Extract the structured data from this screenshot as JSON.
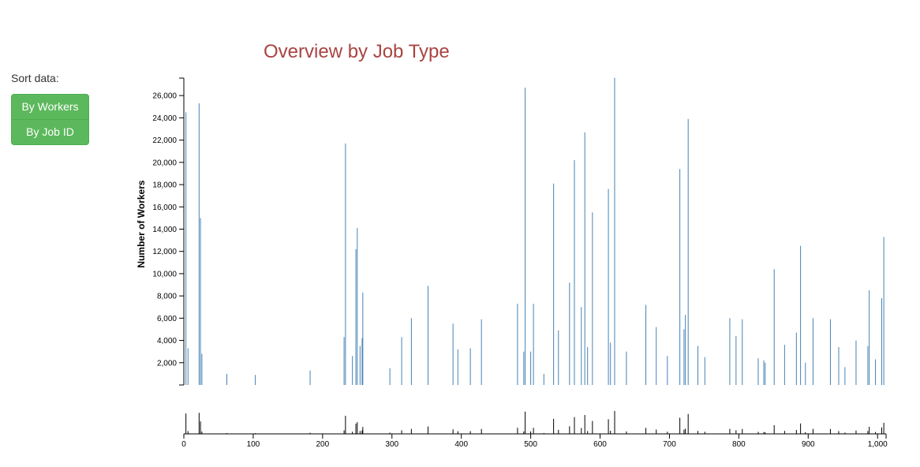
{
  "sidebar": {
    "sort_label": "Sort data:",
    "buttons": [
      "By Workers",
      "By Job ID"
    ]
  },
  "colors": {
    "bar": "#4682b4",
    "context": "#000000",
    "title": "#a94442",
    "button": "#5cb85c"
  },
  "chart_data": {
    "type": "bar",
    "title": "Overview by Job Type",
    "xlabel": "",
    "ylabel": "Number of Workers",
    "xlim": [
      0,
      1010
    ],
    "ylim": [
      0,
      27500
    ],
    "y_ticks": [
      2000,
      4000,
      6000,
      8000,
      10000,
      12000,
      14000,
      16000,
      18000,
      20000,
      22000,
      24000,
      26000
    ],
    "y_tick_labels": [
      "2,000",
      "4,000",
      "6,000",
      "8,000",
      "10,000",
      "12,000",
      "14,000",
      "16,000",
      "18,000",
      "20,000",
      "22,000",
      "24,000",
      "26,000"
    ],
    "x_ticks": [
      0,
      100,
      200,
      300,
      400,
      500,
      600,
      700,
      800,
      900,
      1000
    ],
    "x_tick_labels": [
      "0",
      "100",
      "200",
      "300",
      "400",
      "500",
      "600",
      "700",
      "800",
      "900",
      "1,000"
    ],
    "peaks": {
      "x": [
        3,
        6,
        22,
        24,
        26,
        62,
        103,
        182,
        231,
        233,
        243,
        248,
        250,
        254,
        257,
        258,
        297,
        314,
        328,
        352,
        388,
        395,
        413,
        429,
        481,
        490,
        492,
        500,
        504,
        519,
        533,
        540,
        556,
        563,
        573,
        578,
        582,
        589,
        612,
        615,
        621,
        638,
        666,
        681,
        697,
        715,
        721,
        723,
        727,
        741,
        751,
        787,
        796,
        805,
        828,
        836,
        838,
        851,
        866,
        883,
        889,
        896,
        907,
        932,
        944,
        953,
        969,
        986,
        988,
        997,
        1006,
        1009
      ],
      "y": [
        24500,
        3300,
        25300,
        15000,
        2800,
        1000,
        900,
        1300,
        4300,
        21700,
        2600,
        12200,
        14100,
        3500,
        4200,
        8300,
        1500,
        4300,
        6000,
        8900,
        5500,
        3200,
        3300,
        5900,
        7300,
        3000,
        26700,
        3000,
        7300,
        1000,
        18100,
        4900,
        9200,
        20200,
        7000,
        22700,
        3400,
        15500,
        17600,
        3800,
        27600,
        3000,
        7200,
        5200,
        2600,
        19400,
        5000,
        6300,
        23900,
        3500,
        2500,
        6000,
        4400,
        5900,
        2400,
        2200,
        2000,
        10400,
        3600,
        4700,
        12500,
        2000,
        6000,
        5900,
        3400,
        1600,
        4000,
        3500,
        8500,
        2300,
        7800,
        13300
      ]
    }
  }
}
